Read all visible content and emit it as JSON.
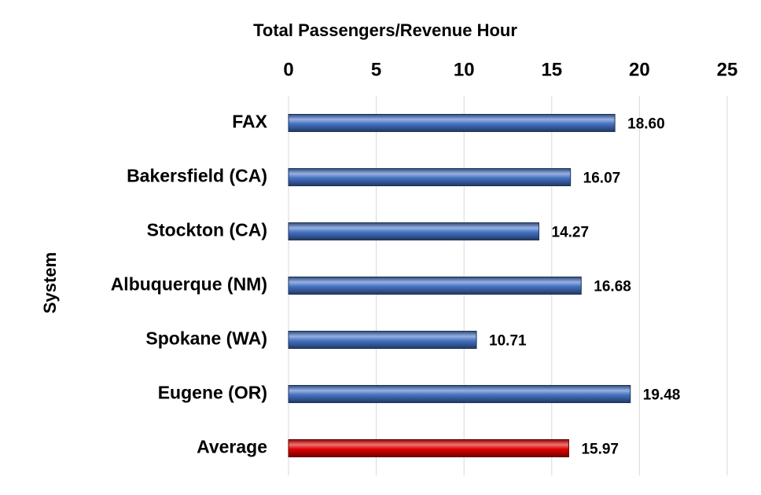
{
  "chart_data": {
    "type": "barh",
    "title": "Total Passengers/Revenue Hour",
    "y_label": "System",
    "categories": [
      "FAX",
      "Bakersfield (CA)",
      "Stockton (CA)",
      "Albuquerque (NM)",
      "Spokane (WA)",
      "Eugene (OR)",
      "Average"
    ],
    "values": [
      18.6,
      16.07,
      14.27,
      16.68,
      10.71,
      19.48,
      15.97
    ],
    "value_labels": [
      "18.60",
      "16.07",
      "14.27",
      "16.68",
      "10.71",
      "19.48",
      "15.97"
    ],
    "colors": [
      "#4472c4",
      "#4472c4",
      "#4472c4",
      "#4472c4",
      "#4472c4",
      "#4472c4",
      "#e00000"
    ],
    "xlim": [
      0,
      25
    ],
    "xticks": [
      0,
      5,
      10,
      15,
      20,
      25
    ],
    "grid": true
  }
}
